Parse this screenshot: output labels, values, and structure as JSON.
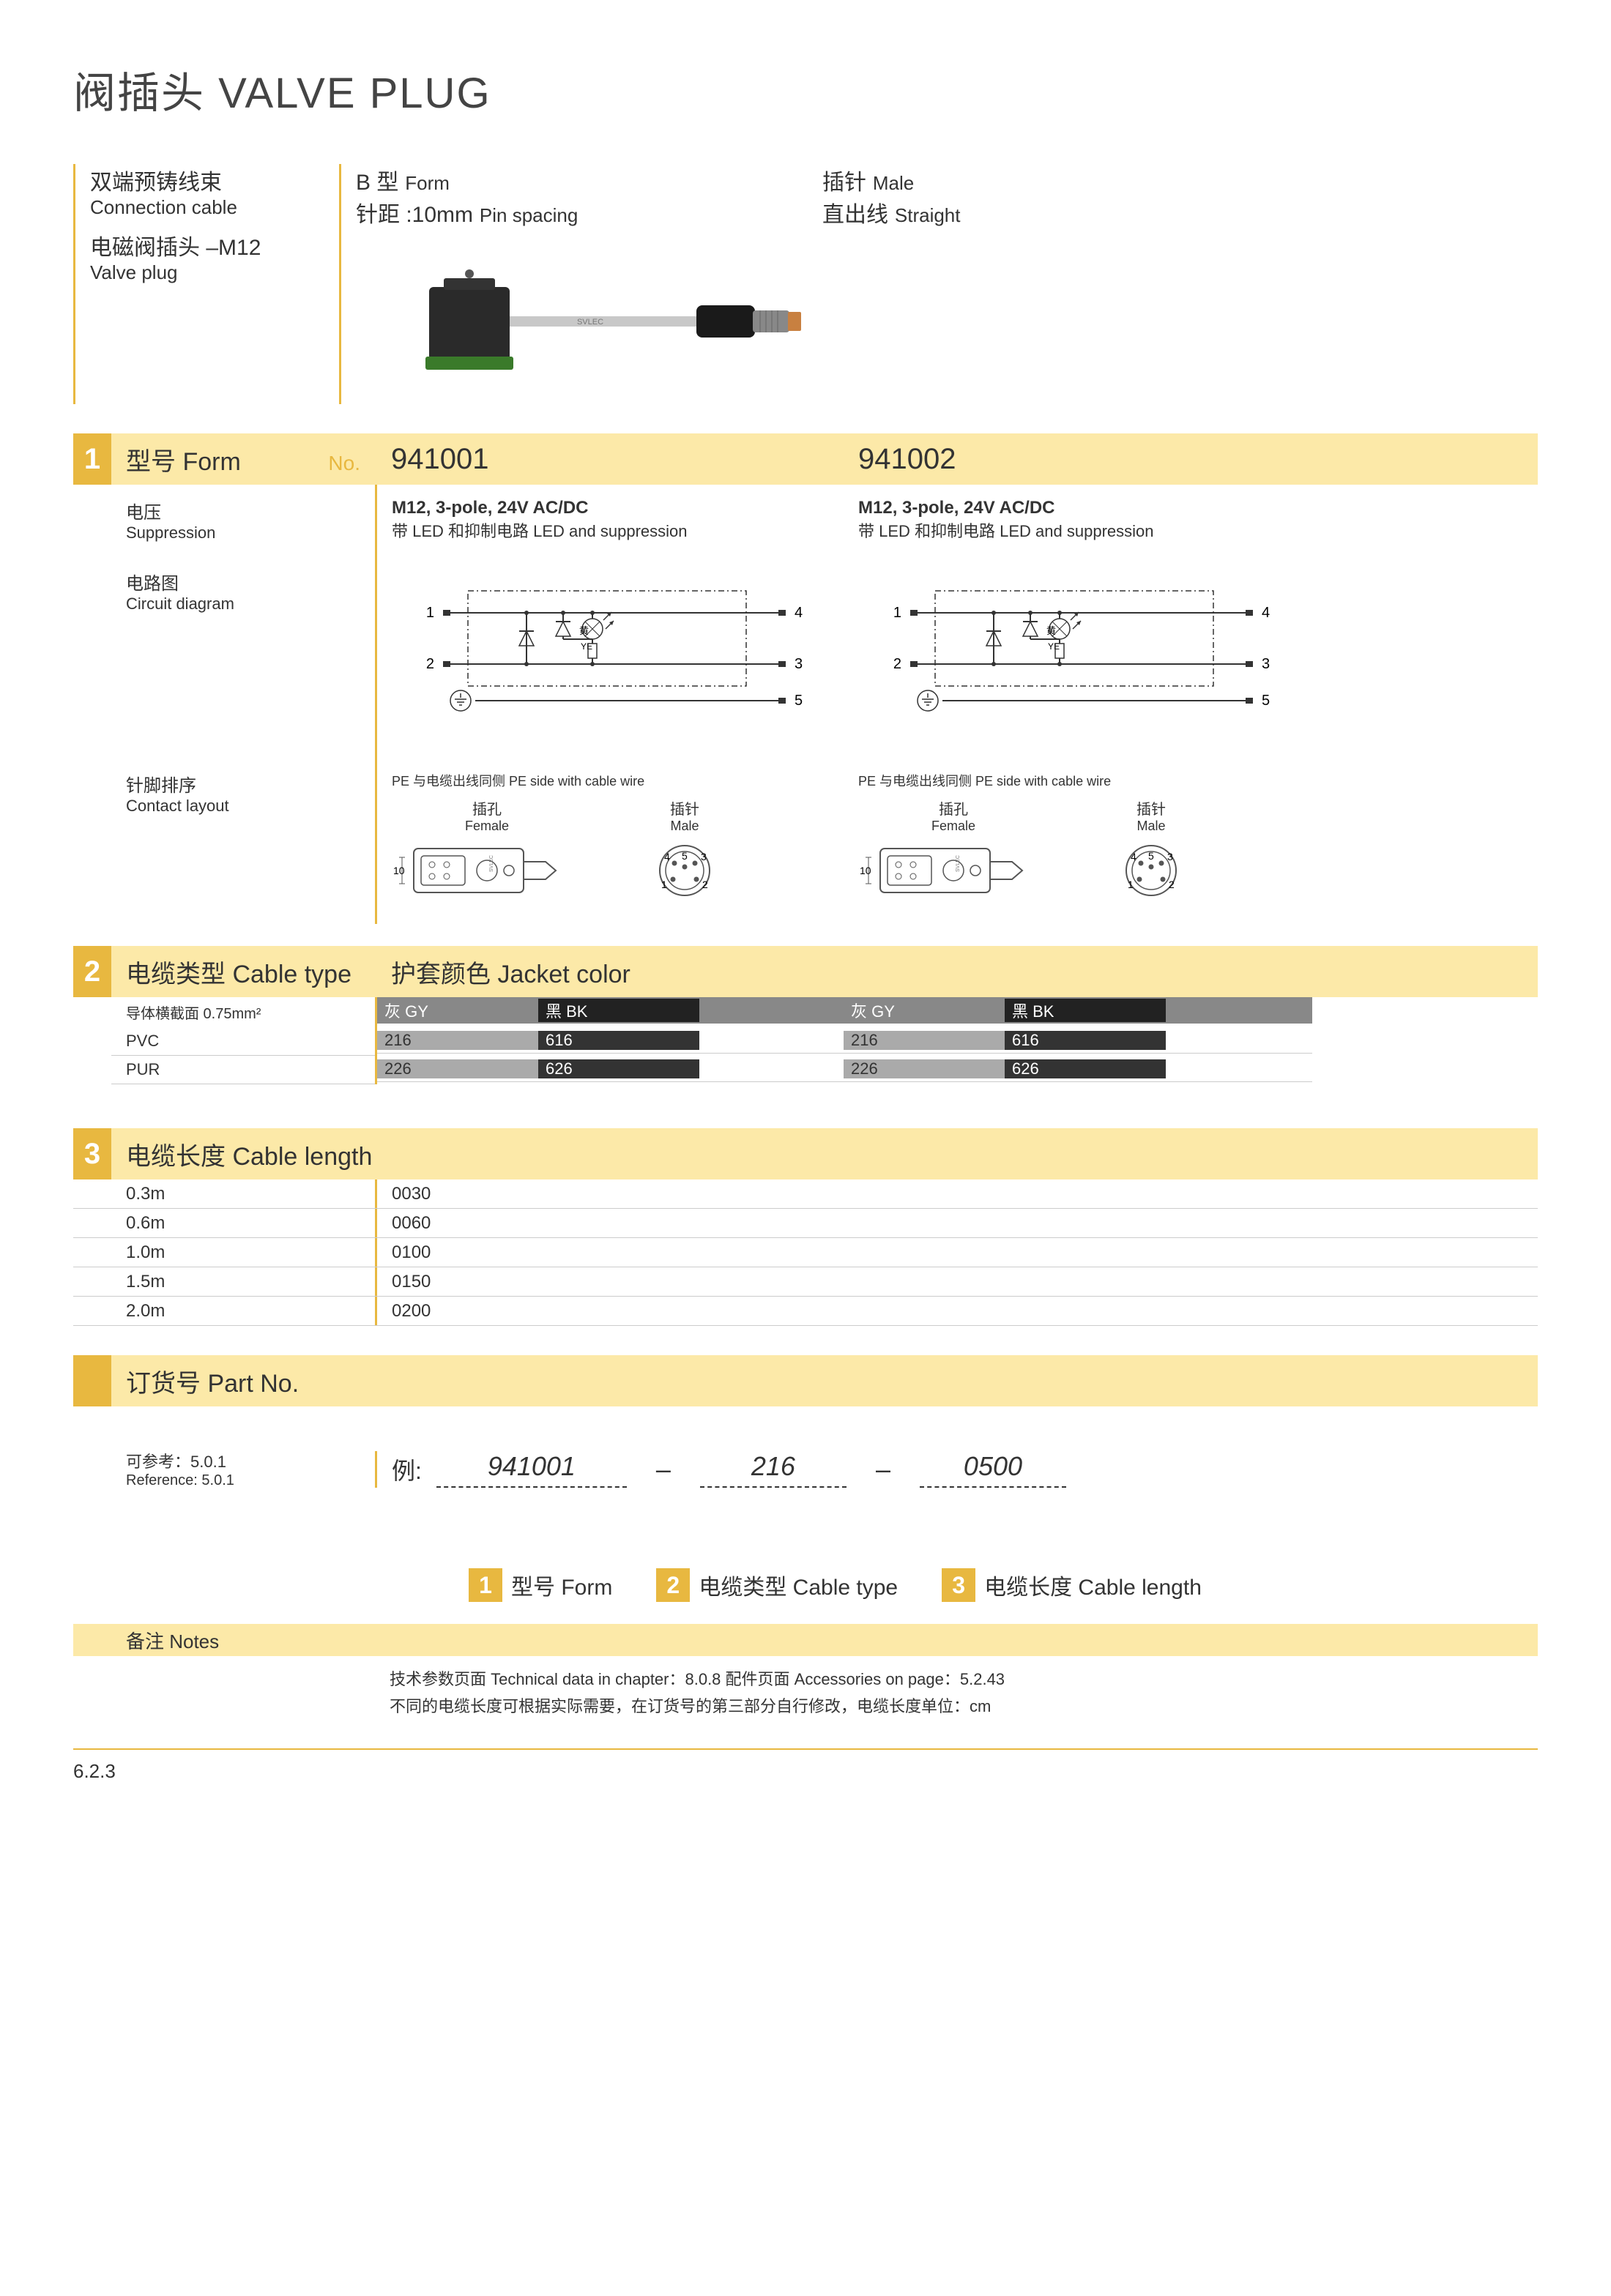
{
  "title": "阀插头  VALVE PLUG",
  "header": {
    "left": [
      {
        "cn": "双端预铸线束",
        "en": "Connection cable"
      },
      {
        "cn": "电磁阀插头 –M12",
        "en": "Valve plug"
      }
    ],
    "mid": [
      {
        "cn": "B 型",
        "en": "Form"
      },
      {
        "cn": "针距 :10mm",
        "en": "Pin spacing"
      }
    ],
    "right": [
      {
        "cn": "插针",
        "en": "Male"
      },
      {
        "cn": "直出线",
        "en": "Straight"
      }
    ]
  },
  "photo_label": "SVLEC",
  "section1": {
    "num": "1",
    "title": "型号 Form",
    "no_label": "No.",
    "col1_id": "941001",
    "col2_id": "941002",
    "voltage": {
      "cn": "电压",
      "en": "Suppression"
    },
    "spec": "M12, 3-pole, 24V AC/DC",
    "led": "带 LED 和抑制电路  LED and suppression",
    "circuit": {
      "cn": "电路图",
      "en": "Circuit diagram"
    },
    "circuit_pins": {
      "l1": "1",
      "l2": "2",
      "r1": "4",
      "r2": "3",
      "r3": "5",
      "ye": "黄",
      "ye_en": "YE"
    },
    "contact": {
      "cn": "针脚排序",
      "en": "Contact layout"
    },
    "pe_note": "PE 与电缆出线同侧  PE side with cable wire",
    "female": {
      "cn": "插孔",
      "en": "Female"
    },
    "male": {
      "cn": "插针",
      "en": "Male"
    },
    "male_pins": {
      "p1": "1",
      "p2": "2",
      "p3": "3",
      "p4": "4",
      "p5": "5"
    },
    "female_dim": "10"
  },
  "section2": {
    "num": "2",
    "title": "电缆类型 Cable type",
    "jacket": "护套颜色 Jacket color",
    "conductor": "导体横截面  0.75mm²",
    "gy_label": "灰 GY",
    "bk_label": "黑 BK",
    "rows": [
      {
        "mat": "PVC",
        "gy": "216",
        "bk": "616"
      },
      {
        "mat": "PUR",
        "gy": "226",
        "bk": "626"
      }
    ]
  },
  "section3": {
    "num": "3",
    "title": "电缆长度 Cable length",
    "rows": [
      {
        "len": "0.3m",
        "code": "0030"
      },
      {
        "len": "0.6m",
        "code": "0060"
      },
      {
        "len": "1.0m",
        "code": "0100"
      },
      {
        "len": "1.5m",
        "code": "0150"
      },
      {
        "len": "2.0m",
        "code": "0200"
      }
    ]
  },
  "partno": {
    "title": "订货号 Part No.",
    "ref_cn": "可参考：5.0.1",
    "ref_en": "Reference: 5.0.1",
    "ex_label": "例:",
    "ex1": "941001",
    "ex2": "216",
    "ex3": "0500",
    "dash": "–"
  },
  "legend": [
    {
      "n": "1",
      "t": "型号 Form"
    },
    {
      "n": "2",
      "t": "电缆类型 Cable type"
    },
    {
      "n": "3",
      "t": "电缆长度 Cable length"
    }
  ],
  "notes_label": "备注 Notes",
  "footer1": "技术参数页面   Technical data in chapter：8.0.8        配件页面   Accessories on page：5.2.43",
  "footer2": "不同的电缆长度可根据实际需要，在订货号的第三部分自行修改，电缆长度单位：cm",
  "page_no": "6.2.3",
  "colors": {
    "accent": "#e8b840",
    "band": "#fce9a8",
    "grey": "#888888",
    "black": "#222222"
  }
}
